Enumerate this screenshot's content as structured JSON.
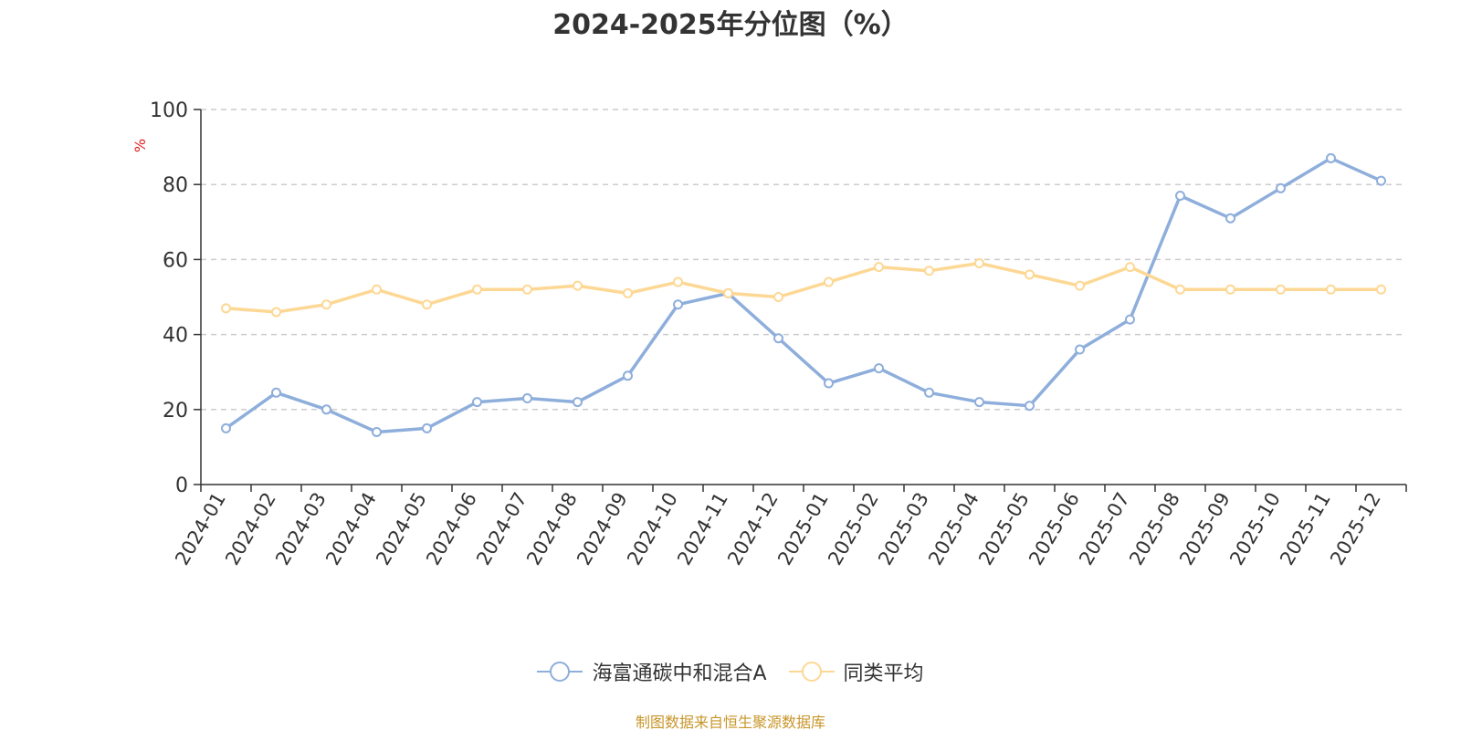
{
  "chart_data": {
    "type": "line",
    "title": "2024-2025年分位图（%）",
    "ylabel": "%",
    "xlabel": "",
    "ylim": [
      0,
      100
    ],
    "yticks": [
      0,
      20,
      40,
      60,
      80,
      100
    ],
    "grid": true,
    "legend_position": "bottom",
    "categories": [
      "2024-01",
      "2024-02",
      "2024-03",
      "2024-04",
      "2024-05",
      "2024-06",
      "2024-07",
      "2024-08",
      "2024-09",
      "2024-10",
      "2024-11",
      "2024-12",
      "2025-01",
      "2025-02",
      "2025-03",
      "2025-04",
      "2025-05",
      "2025-06",
      "2025-07",
      "2025-08",
      "2025-09",
      "2025-10",
      "2025-11",
      "2025-12"
    ],
    "series": [
      {
        "name": "海富通碳中和混合A",
        "color": "#8eaedb",
        "values": [
          15,
          24.5,
          20,
          14,
          15,
          22,
          23,
          22,
          29,
          48,
          51,
          39,
          27,
          31,
          24.5,
          22,
          21,
          36,
          44,
          77,
          71,
          79,
          87,
          81
        ]
      },
      {
        "name": "同类平均",
        "color": "#fdd894",
        "values": [
          47,
          46,
          48,
          52,
          48,
          52,
          52,
          53,
          51,
          54,
          51,
          50,
          54,
          58,
          57,
          59,
          56,
          53,
          58,
          52,
          52,
          52,
          52,
          52
        ]
      }
    ]
  },
  "footer": "制图数据来自恒生聚源数据库"
}
